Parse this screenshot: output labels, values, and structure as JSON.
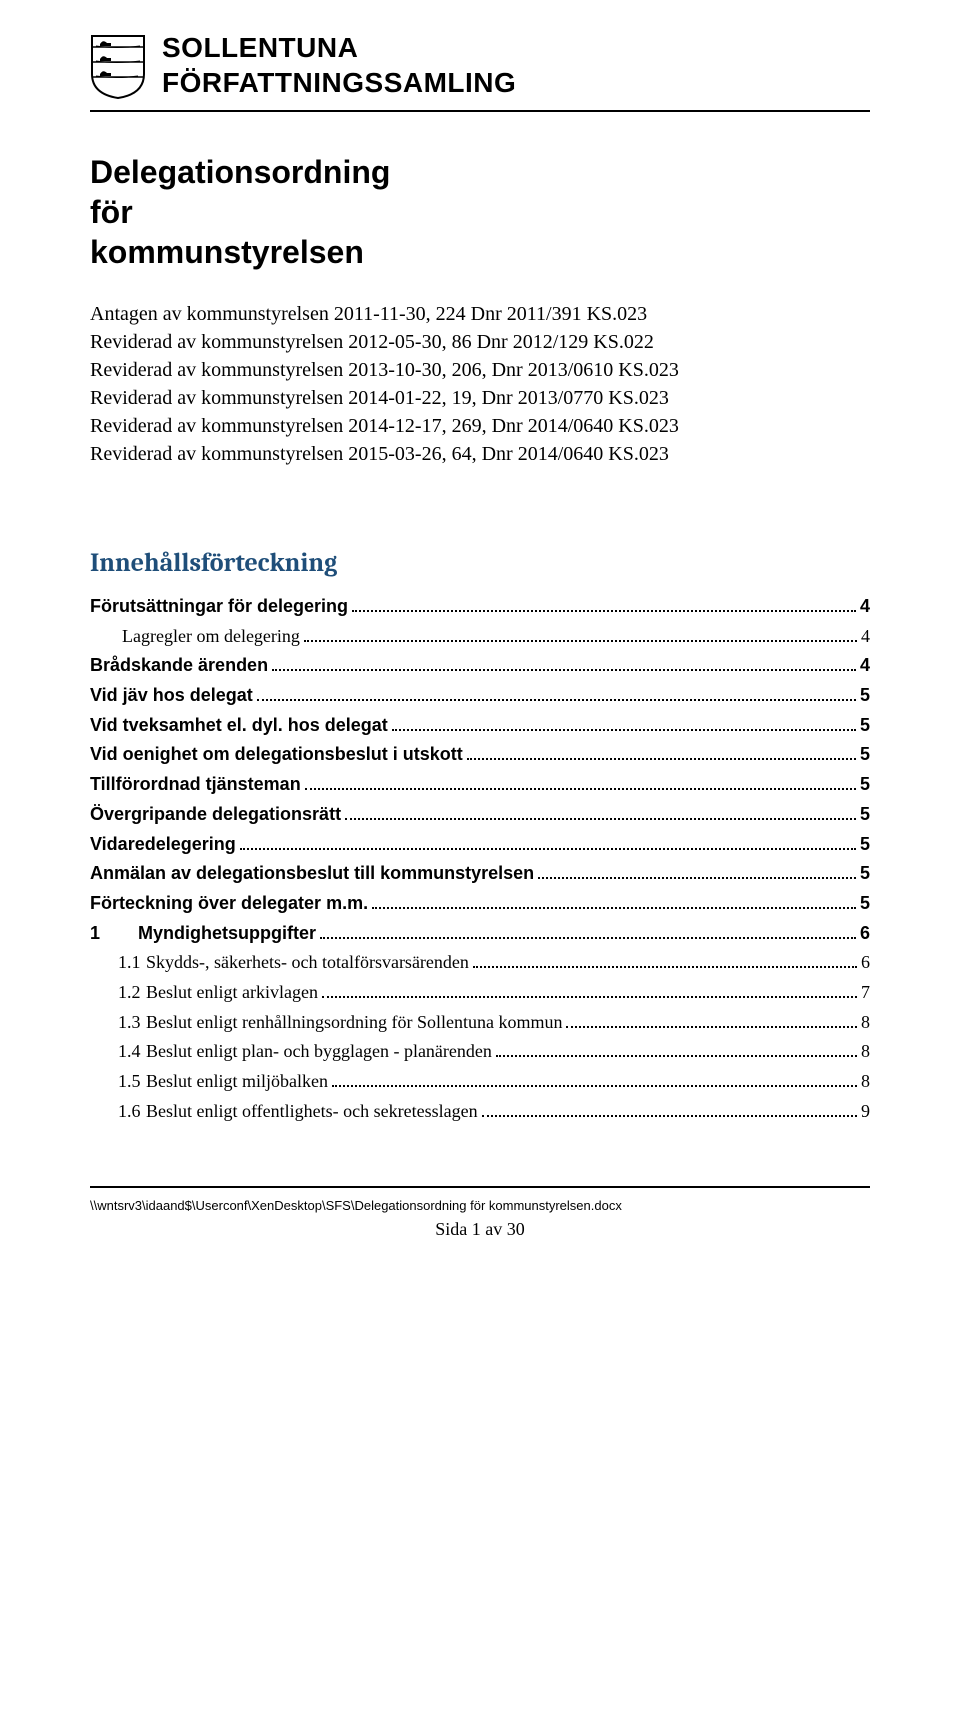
{
  "header": {
    "org_line1": "SOLLENTUNA",
    "org_line2": "FÖRFATTNINGSSAMLING"
  },
  "title": {
    "line1": "Delegationsordning",
    "line2": "för",
    "line3": "kommunstyrelsen"
  },
  "revisions": [
    "Antagen av kommunstyrelsen 2011-11-30, 224 Dnr 2011/391 KS.023",
    "Reviderad av kommunstyrelsen 2012-05-30, 86 Dnr 2012/129 KS.022",
    "Reviderad av kommunstyrelsen 2013-10-30, 206, Dnr 2013/0610 KS.023",
    "Reviderad av kommunstyrelsen 2014-01-22, 19, Dnr 2013/0770 KS.023",
    "Reviderad av kommunstyrelsen 2014-12-17, 269, Dnr 2014/0640 KS.023",
    "Reviderad av kommunstyrelsen 2015-03-26, 64, Dnr 2014/0640 KS.023"
  ],
  "toc": {
    "heading": "Innehållsförteckning",
    "heading_color": "#1f4e79",
    "entries": [
      {
        "label": "Förutsättningar för delegering",
        "page": "4",
        "bold": true,
        "indent": 0
      },
      {
        "label": "Lagregler om delegering",
        "page": "4",
        "bold": false,
        "indent": 1
      },
      {
        "label": "Brådskande ärenden",
        "page": "4",
        "bold": true,
        "indent": 0
      },
      {
        "label": "Vid jäv hos delegat",
        "page": "5",
        "bold": true,
        "indent": 0
      },
      {
        "label": "Vid tveksamhet el. dyl. hos delegat",
        "page": "5",
        "bold": true,
        "indent": 0
      },
      {
        "label": "Vid oenighet om delegationsbeslut i utskott",
        "page": "5",
        "bold": true,
        "indent": 0
      },
      {
        "label": "Tillförordnad tjänsteman",
        "page": "5",
        "bold": true,
        "indent": 0
      },
      {
        "label": "Övergripande delegationsrätt",
        "page": "5",
        "bold": true,
        "indent": 0
      },
      {
        "label": "Vidaredelegering",
        "page": "5",
        "bold": true,
        "indent": 0
      },
      {
        "label": "Anmälan av delegationsbeslut till kommunstyrelsen",
        "page": "5",
        "bold": true,
        "indent": 0
      },
      {
        "label": "Förteckning över delegater m.m.",
        "page": "5",
        "bold": true,
        "indent": 0
      },
      {
        "num": "1",
        "label": "Myndighetsuppgifter",
        "page": "6",
        "bold": true,
        "indent": 0,
        "numbered": 1
      },
      {
        "num": "1.1",
        "label": "Skydds-, säkerhets- och totalförsvarsärenden",
        "page": "6",
        "bold": false,
        "indent": 0,
        "numbered": 2
      },
      {
        "num": "1.2",
        "label": "Beslut enligt arkivlagen",
        "page": "7",
        "bold": false,
        "indent": 0,
        "numbered": 2
      },
      {
        "num": "1.3",
        "label": "Beslut enligt renhållningsordning för Sollentuna kommun",
        "page": "8",
        "bold": false,
        "indent": 0,
        "numbered": 2
      },
      {
        "num": "1.4",
        "label": "Beslut enligt plan- och bygglagen - planärenden",
        "page": "8",
        "bold": false,
        "indent": 0,
        "numbered": 2
      },
      {
        "num": "1.5",
        "label": "Beslut enligt miljöbalken",
        "page": "8",
        "bold": false,
        "indent": 0,
        "numbered": 2
      },
      {
        "num": "1.6",
        "label": "Beslut enligt offentlighets- och sekretesslagen",
        "page": "9",
        "bold": false,
        "indent": 0,
        "numbered": 2
      }
    ]
  },
  "footer": {
    "path": "\\\\wntsrv3\\idaand$\\Userconf\\XenDesktop\\SFS\\Delegationsordning för kommunstyrelsen.docx",
    "page": "Sida 1 av 30"
  }
}
